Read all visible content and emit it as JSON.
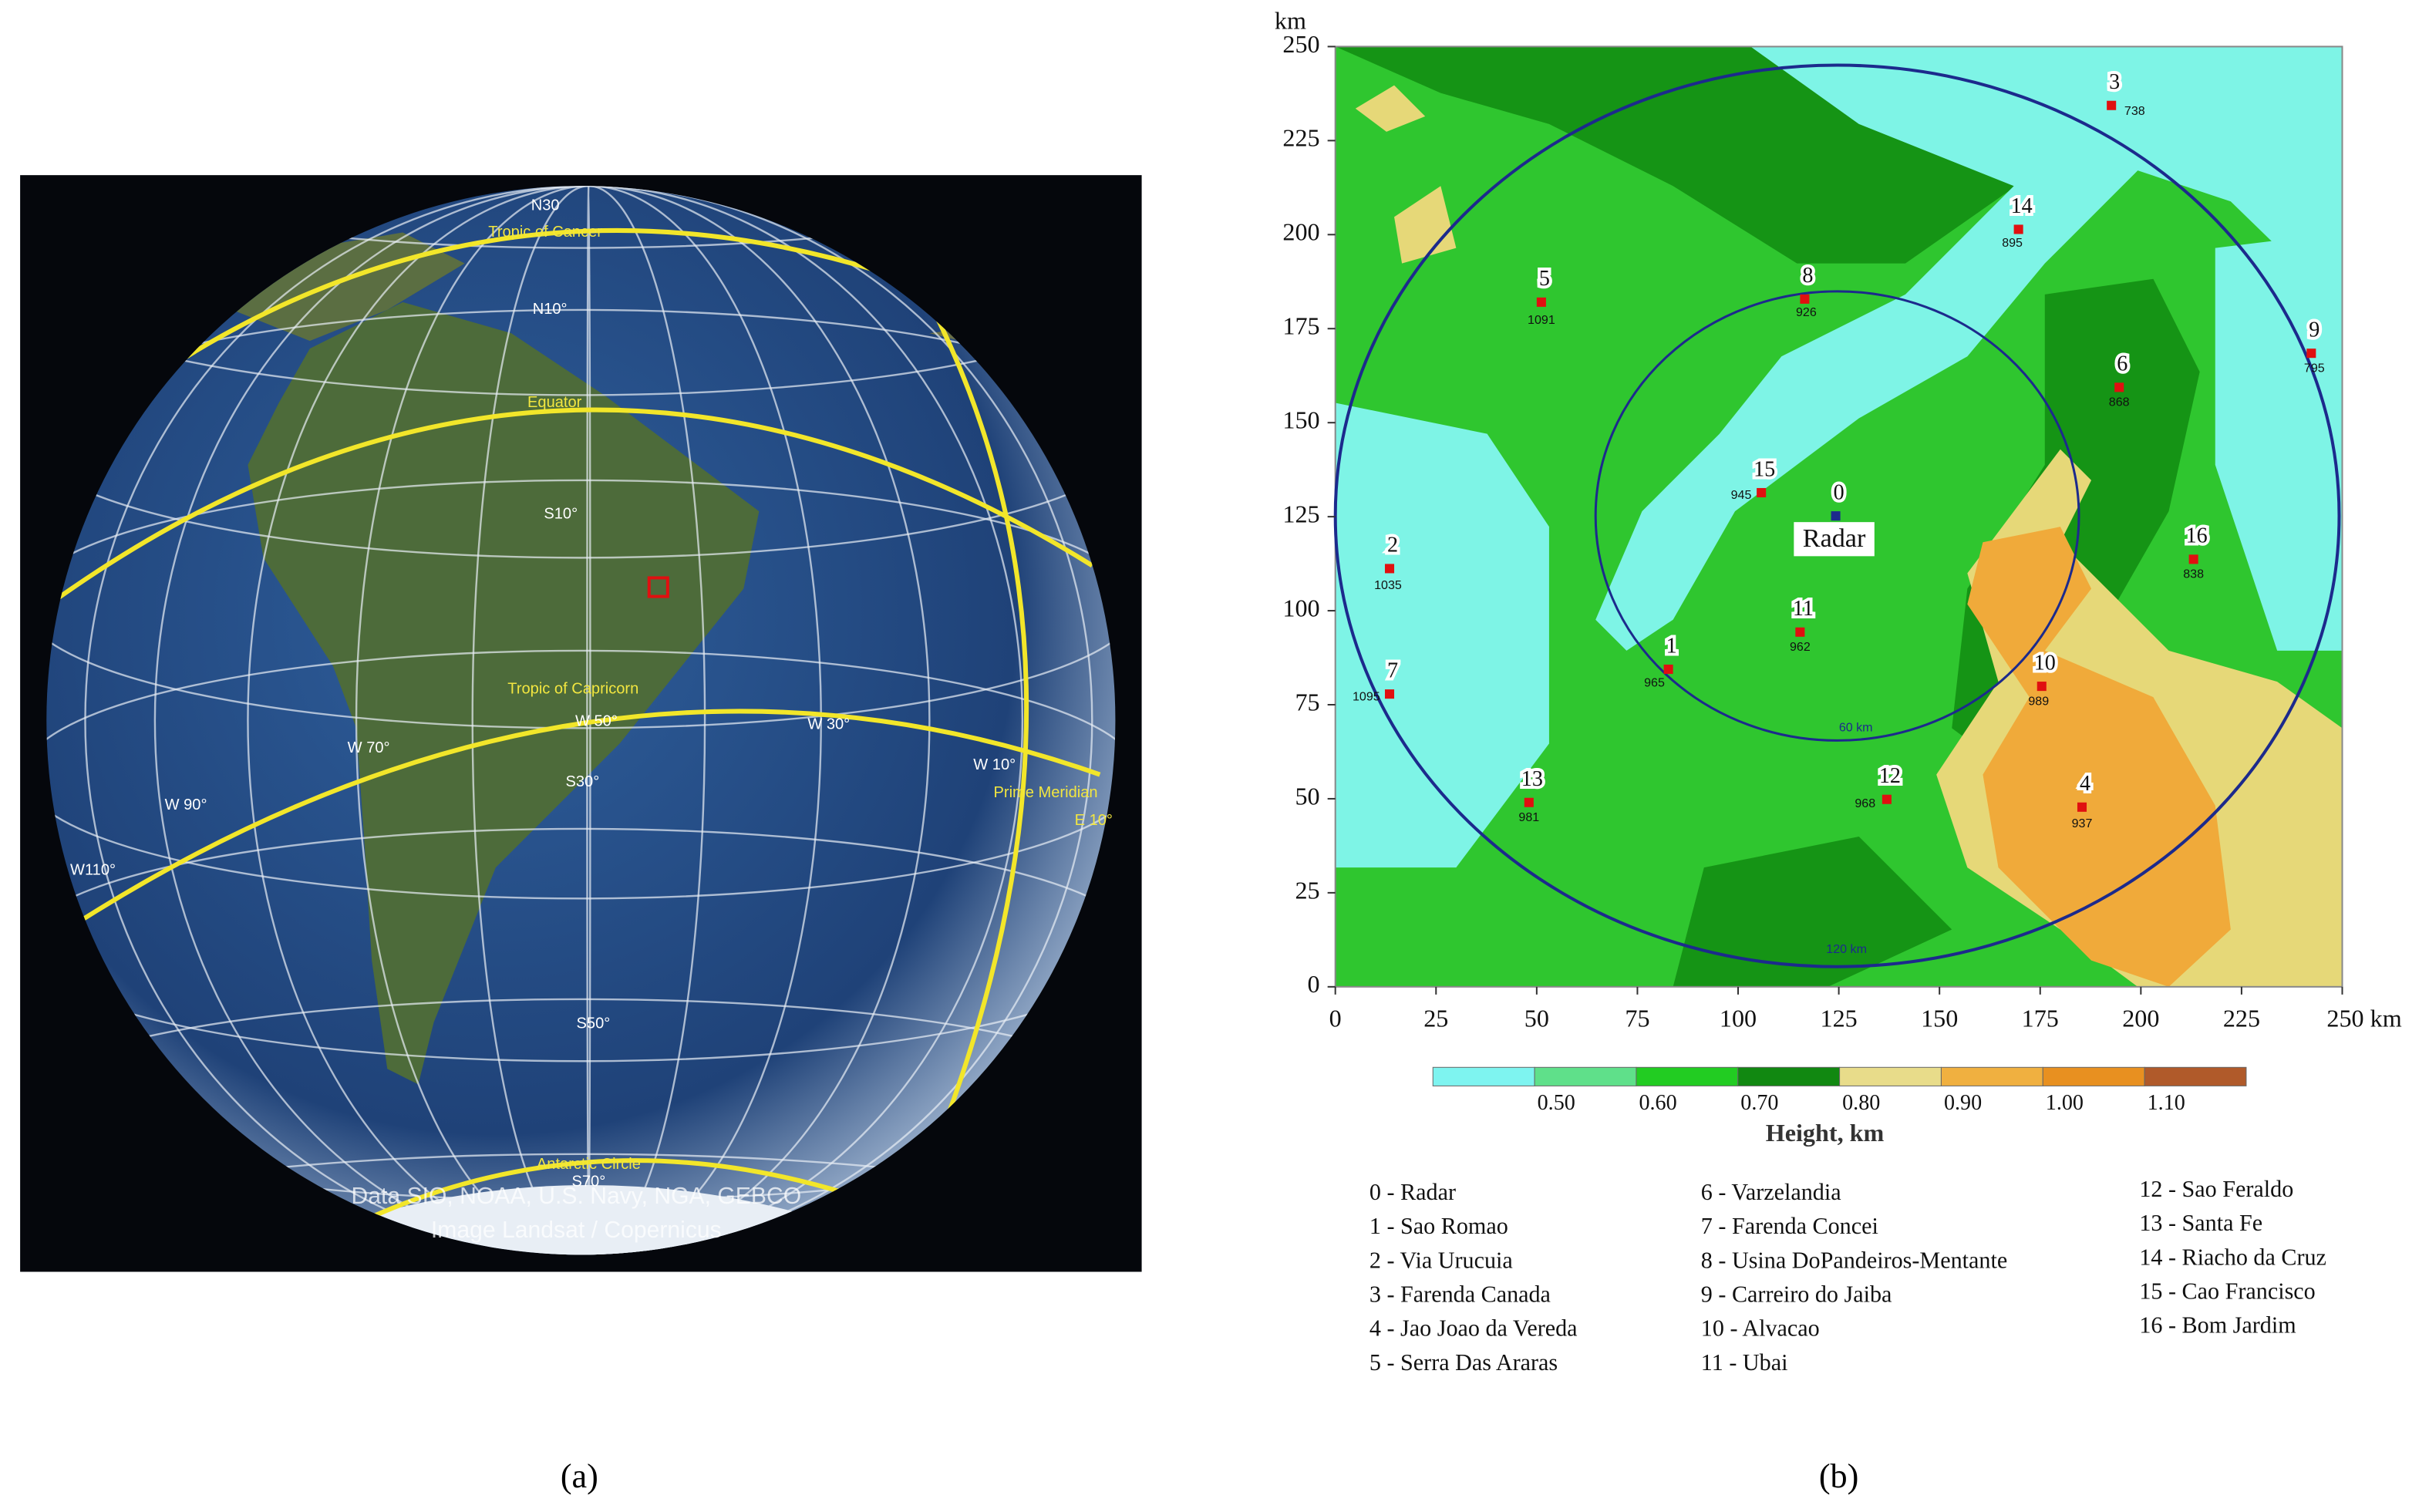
{
  "panel_a": {
    "label": "(a)",
    "globe_labels": [
      "N30",
      "Tropic of Cancer",
      "N10°",
      "Equator",
      "S10°",
      "Tropic of Capricorn",
      "W 50°",
      "W 30°",
      "W 70°",
      "S30°",
      "W 10°",
      "Prime Meridian",
      "E 10°",
      "W 90°",
      "W110°",
      "S50°",
      "Antarctic Circle",
      "S70°"
    ],
    "credits": [
      "Data SIO, NOAA, U.S. Navy, NGA, GEBCO",
      "Image Landsat / Copernicus"
    ]
  },
  "panel_b": {
    "label": "(b)",
    "map": {
      "y_unit": "km",
      "xlim": [
        0,
        250
      ],
      "ylim": [
        0,
        250
      ],
      "xticks": [
        0,
        25,
        50,
        75,
        100,
        125,
        150,
        175,
        200,
        225,
        {
          "value": 250,
          "label": "250 km"
        }
      ],
      "yticks": [
        0,
        25,
        50,
        75,
        100,
        125,
        150,
        175,
        200,
        225,
        250
      ],
      "rings": [
        "60 km",
        "120 km"
      ],
      "radar_label": "Radar",
      "sites": [
        {
          "id": "0"
        },
        {
          "id": "1",
          "elevation": 965
        },
        {
          "id": "2",
          "elevation": 1035
        },
        {
          "id": "3",
          "elevation": 738
        },
        {
          "id": "4",
          "elevation": 937
        },
        {
          "id": "5",
          "elevation": 1091
        },
        {
          "id": "6",
          "elevation": 868
        },
        {
          "id": "7",
          "elevation": 1095
        },
        {
          "id": "8",
          "elevation": 926
        },
        {
          "id": "9",
          "elevation": 795
        },
        {
          "id": "10",
          "elevation": 989
        },
        {
          "id": "11",
          "elevation": 962
        },
        {
          "id": "12",
          "elevation": 968
        },
        {
          "id": "13",
          "elevation": 981
        },
        {
          "id": "14",
          "elevation": 895
        },
        {
          "id": "15",
          "elevation": 945
        },
        {
          "id": "16",
          "elevation": 838
        }
      ]
    },
    "colorbar": {
      "ticks": [
        "0.50",
        "0.60",
        "0.70",
        "0.80",
        "0.90",
        "1.00",
        "1.10"
      ],
      "title": "Height, km"
    },
    "legend": [
      "0 - Radar",
      "1 - Sao Romao",
      "2 - Via Urucuia",
      "3 - Farenda Canada",
      "4 - Jao Joao da Vereda",
      "5 - Serra Das Araras",
      "6 - Varzelandia",
      "7 - Farenda Concei",
      "8 - Usina DoPandeiros-Mentante",
      "9 - Carreiro do Jaiba",
      "10 - Alvacao",
      "11 - Ubai",
      "12 - Sao Feraldo",
      "13 - Santa Fe",
      "14 - Riacho da Cruz",
      "15 - Cao Francisco",
      "16 - Bom Jardim"
    ]
  }
}
